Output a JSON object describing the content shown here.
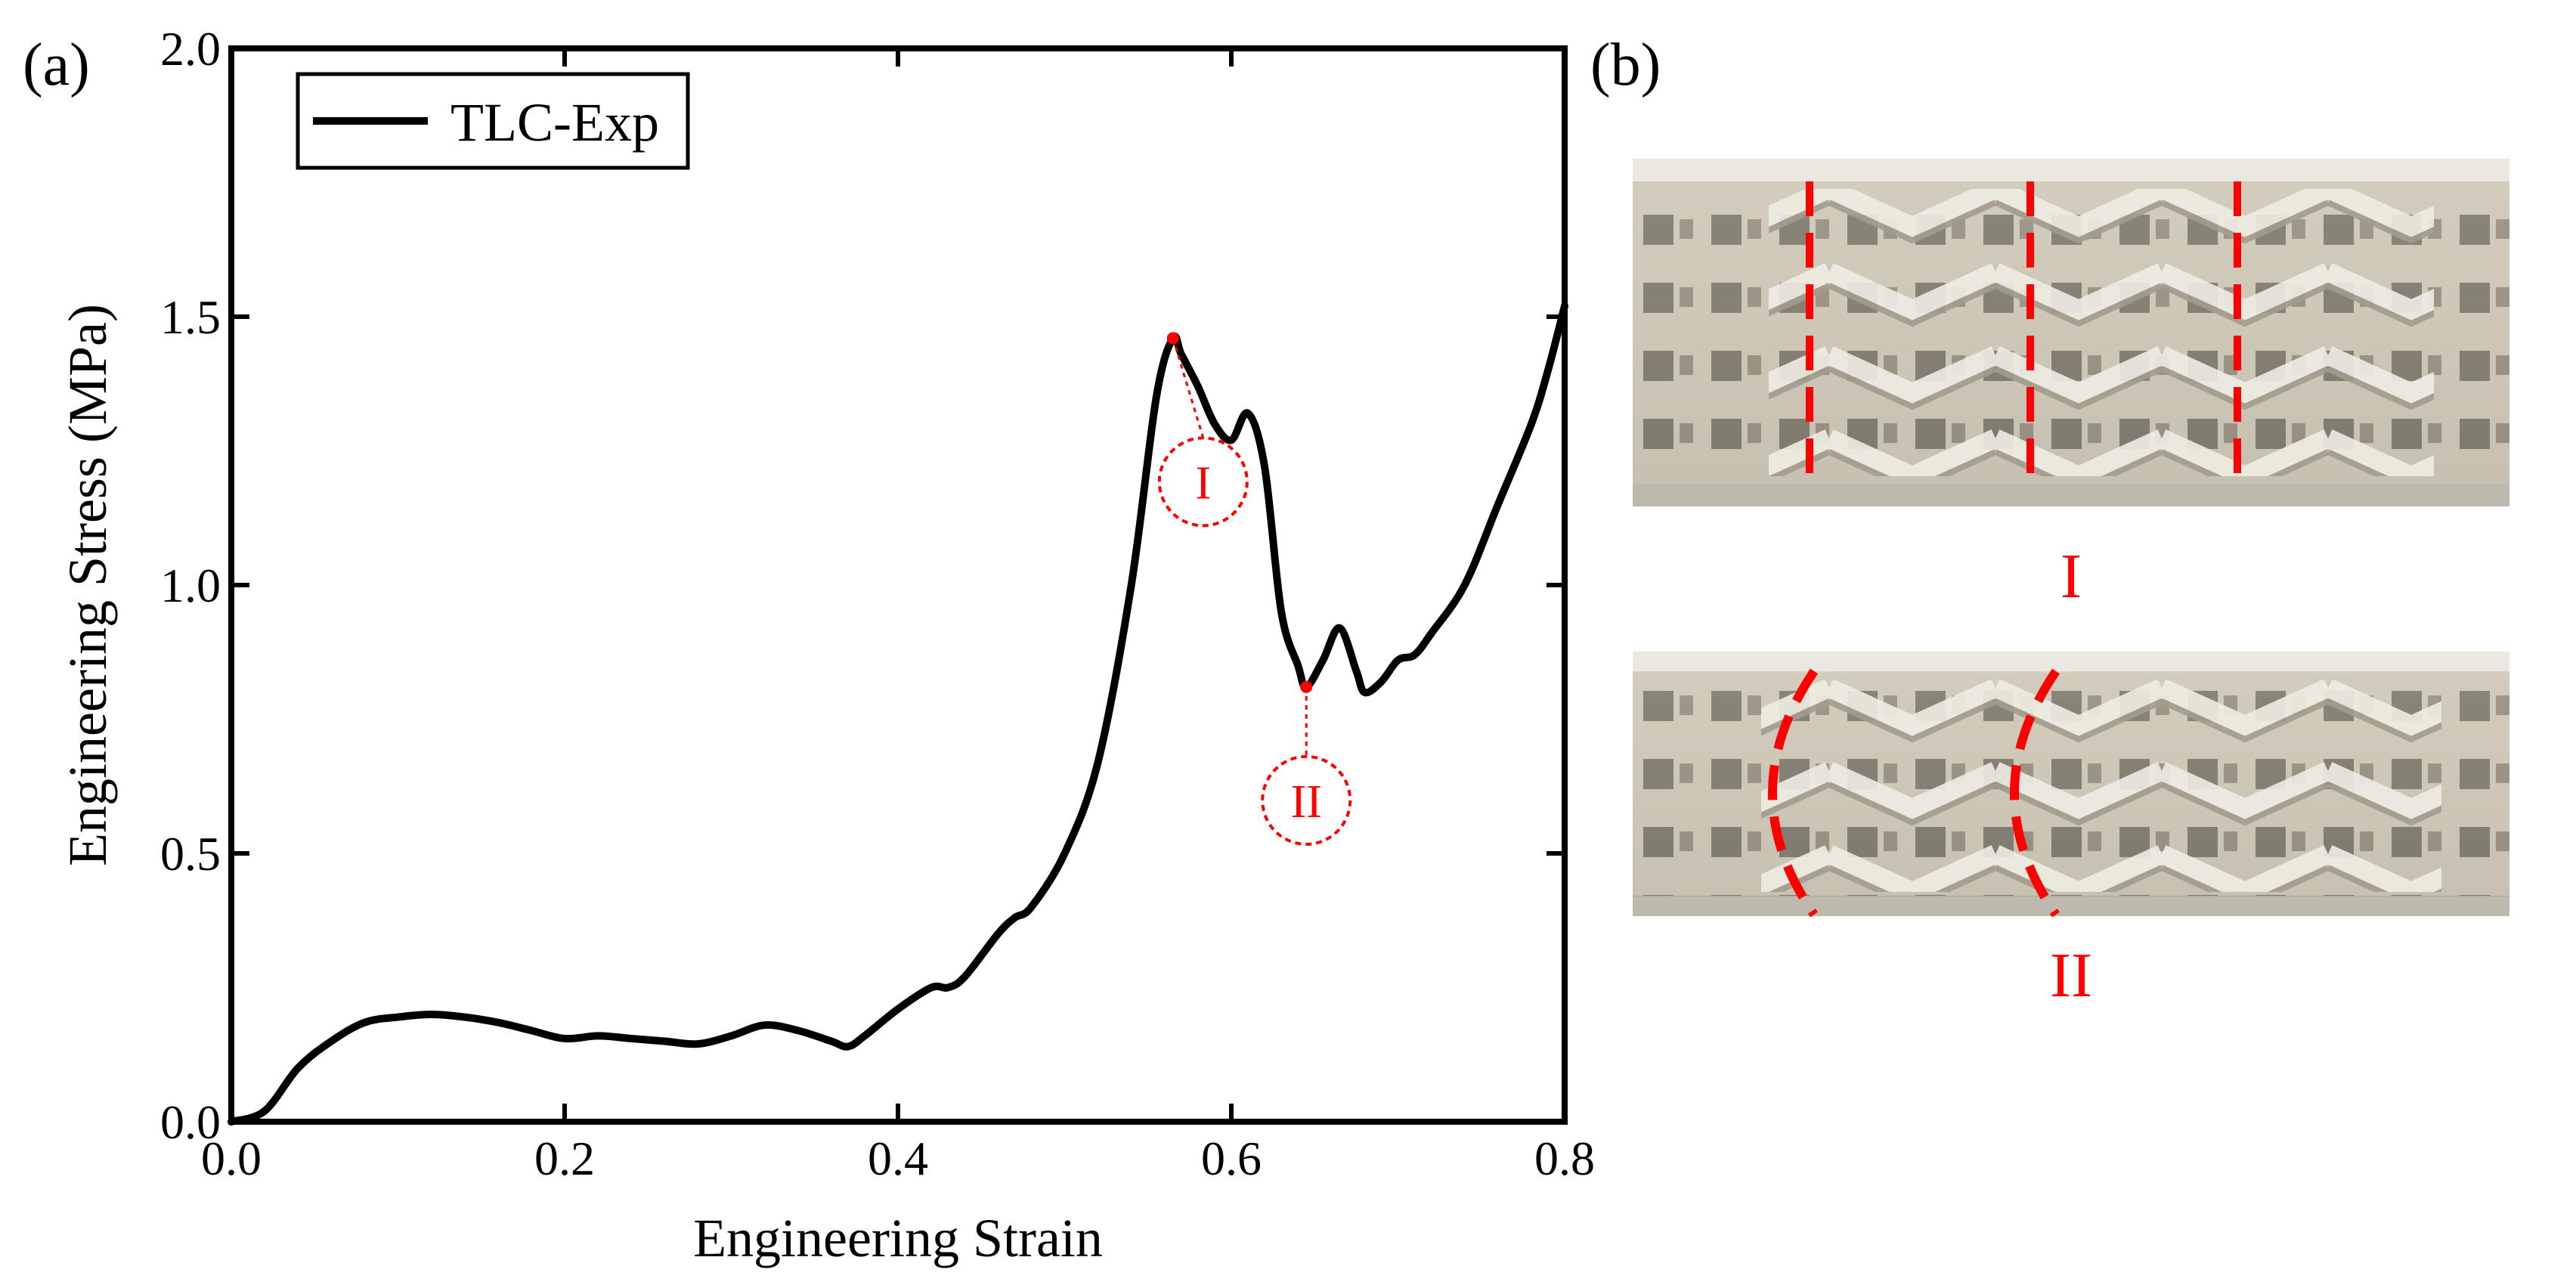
{
  "panel_labels": {
    "a": "(a)",
    "b": "(b)"
  },
  "photos": {
    "top_label": "I",
    "bottom_label": "II"
  },
  "colors": {
    "curve": "#000000",
    "annotation": "#ff0000",
    "photo_base": "#cfcabd",
    "photo_shadow": "#8f8a7e"
  },
  "chart_data": {
    "type": "line",
    "title": "",
    "xlabel": "Engineering Strain",
    "ylabel": "Engineering Stress (MPa)",
    "xlim": [
      0.0,
      0.8
    ],
    "ylim": [
      0.0,
      2.0
    ],
    "xticks": [
      "0.0",
      "0.2",
      "0.4",
      "0.6",
      "0.8"
    ],
    "yticks": [
      "0.0",
      "0.5",
      "1.0",
      "1.5",
      "2.0"
    ],
    "xtick_values": [
      0.0,
      0.2,
      0.4,
      0.6,
      0.8
    ],
    "ytick_values": [
      0.0,
      0.5,
      1.0,
      1.5,
      2.0
    ],
    "grid": false,
    "legend_position": "top-left",
    "series": [
      {
        "name": "TLC-Exp",
        "x": [
          0.0,
          0.02,
          0.04,
          0.06,
          0.08,
          0.1,
          0.12,
          0.14,
          0.16,
          0.18,
          0.2,
          0.22,
          0.24,
          0.26,
          0.28,
          0.3,
          0.32,
          0.34,
          0.36,
          0.37,
          0.38,
          0.4,
          0.42,
          0.43,
          0.44,
          0.46,
          0.47,
          0.48,
          0.5,
          0.52,
          0.54,
          0.555,
          0.565,
          0.57,
          0.58,
          0.59,
          0.6,
          0.61,
          0.62,
          0.63,
          0.64,
          0.645,
          0.655,
          0.665,
          0.675,
          0.68,
          0.69,
          0.7,
          0.71,
          0.72,
          0.74,
          0.76,
          0.78,
          0.79,
          0.8
        ],
        "y": [
          0.0,
          0.02,
          0.1,
          0.15,
          0.185,
          0.195,
          0.2,
          0.195,
          0.185,
          0.17,
          0.155,
          0.16,
          0.155,
          0.15,
          0.145,
          0.16,
          0.18,
          0.17,
          0.15,
          0.14,
          0.16,
          0.21,
          0.25,
          0.25,
          0.27,
          0.35,
          0.38,
          0.4,
          0.5,
          0.67,
          1.0,
          1.35,
          1.46,
          1.43,
          1.37,
          1.3,
          1.27,
          1.32,
          1.22,
          0.95,
          0.85,
          0.81,
          0.86,
          0.92,
          0.84,
          0.8,
          0.82,
          0.86,
          0.87,
          0.91,
          1.0,
          1.15,
          1.3,
          1.4,
          1.52
        ]
      }
    ],
    "annotations": [
      {
        "label": "I",
        "x": 0.565,
        "y": 1.46
      },
      {
        "label": "II",
        "x": 0.645,
        "y": 0.81
      }
    ]
  }
}
